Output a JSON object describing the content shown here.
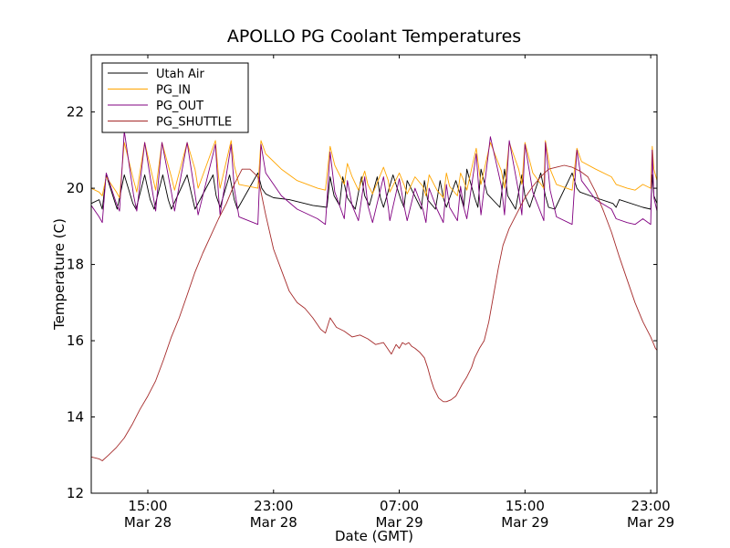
{
  "chart_data": {
    "type": "line",
    "title": "APOLLO PG Coolant Temperatures",
    "xlabel": "Date (GMT)",
    "ylabel": "Temperature (C)",
    "xlim": [
      11.4,
      47.4
    ],
    "ylim": [
      12,
      23.5
    ],
    "grid": false,
    "legend_position": "top-left",
    "x_unit": "hours since Mar 28 00:00 GMT",
    "yticks": [
      12,
      14,
      16,
      18,
      20,
      22
    ],
    "ytick_labels": [
      "12",
      "14",
      "16",
      "18",
      "20",
      "22"
    ],
    "xticks": [
      15,
      23,
      31,
      39,
      47
    ],
    "xtick_labels": [
      [
        "15:00",
        "Mar 28"
      ],
      [
        "23:00",
        "Mar 28"
      ],
      [
        "07:00",
        "Mar 29"
      ],
      [
        "15:00",
        "Mar 29"
      ],
      [
        "23:00",
        "Mar 29"
      ]
    ],
    "series": [
      {
        "name": "Utah Air",
        "color": "#000000",
        "x": [
          11.4,
          11.9,
          12.1,
          12.35,
          12.85,
          13.05,
          13.5,
          14.05,
          14.25,
          14.8,
          15.15,
          15.4,
          15.95,
          16.3,
          16.5,
          17.5,
          17.75,
          18.0,
          19.15,
          19.35,
          19.6,
          20.2,
          20.5,
          20.7,
          22.0,
          22.25,
          22.5,
          23.0,
          24.0,
          25.5,
          26.4,
          26.6,
          26.85,
          27.2,
          27.4,
          27.7,
          28.2,
          28.6,
          28.8,
          29.1,
          29.6,
          29.8,
          30.0,
          30.6,
          31.1,
          31.3,
          31.5,
          32.1,
          32.4,
          32.6,
          32.8,
          33.3,
          33.6,
          33.8,
          34.0,
          34.6,
          34.9,
          35.1,
          35.3,
          35.8,
          36.0,
          36.2,
          36.6,
          37.4,
          37.7,
          37.9,
          38.4,
          38.8,
          39.0,
          39.3,
          40.0,
          40.3,
          40.5,
          40.9,
          42.0,
          42.3,
          42.5,
          43.5,
          44.6,
          44.8,
          45.0,
          46.5,
          47.0,
          47.1,
          47.2,
          47.4
        ],
        "y": [
          19.6,
          19.7,
          19.45,
          20.35,
          19.7,
          19.45,
          20.35,
          19.6,
          19.45,
          20.35,
          19.7,
          19.45,
          20.35,
          19.7,
          19.45,
          20.35,
          19.9,
          19.45,
          20.35,
          19.8,
          19.5,
          20.35,
          19.7,
          19.45,
          20.4,
          20.0,
          19.85,
          19.75,
          19.7,
          19.55,
          19.5,
          20.3,
          19.8,
          19.55,
          20.3,
          19.75,
          19.45,
          20.3,
          19.8,
          19.55,
          20.3,
          19.75,
          19.5,
          20.35,
          19.7,
          19.5,
          20.2,
          19.7,
          19.45,
          20.2,
          19.7,
          19.45,
          20.2,
          19.75,
          19.5,
          20.2,
          19.8,
          19.5,
          20.5,
          19.75,
          19.5,
          20.5,
          19.85,
          19.5,
          20.5,
          19.8,
          19.45,
          20.35,
          19.8,
          19.5,
          20.4,
          19.8,
          19.5,
          19.45,
          20.4,
          20.0,
          19.9,
          19.75,
          19.6,
          19.5,
          19.7,
          19.5,
          19.45,
          20.35,
          19.8,
          19.6
        ]
      },
      {
        "name": "PG_IN",
        "color": "#ffa500",
        "x": [
          11.4,
          11.9,
          12.1,
          12.35,
          13.0,
          13.2,
          13.5,
          14.1,
          14.3,
          14.8,
          15.3,
          15.5,
          15.9,
          16.5,
          16.7,
          17.5,
          18.0,
          18.2,
          19.3,
          19.5,
          19.6,
          20.3,
          20.5,
          20.8,
          22.0,
          22.2,
          22.5,
          23.5,
          24.5,
          25.8,
          26.3,
          26.6,
          26.9,
          27.5,
          27.7,
          28.0,
          28.4,
          28.8,
          29.0,
          29.3,
          30.0,
          30.3,
          30.4,
          31.0,
          31.3,
          31.5,
          32.0,
          32.5,
          32.7,
          32.9,
          33.4,
          33.8,
          34.0,
          34.2,
          34.7,
          34.9,
          35.1,
          35.3,
          35.9,
          36.1,
          36.2,
          36.8,
          37.5,
          37.7,
          38.0,
          38.6,
          38.8,
          39.0,
          39.5,
          40.2,
          40.3,
          40.6,
          41.0,
          42.0,
          42.3,
          42.6,
          43.5,
          44.5,
          44.8,
          45.5,
          46.0,
          46.5,
          47.0,
          47.1,
          47.2,
          47.4
        ],
        "y": [
          20.0,
          19.9,
          19.8,
          20.3,
          19.9,
          19.75,
          21.2,
          20.2,
          19.9,
          21.2,
          20.3,
          19.95,
          21.2,
          20.3,
          19.95,
          21.2,
          20.5,
          20.0,
          21.25,
          20.3,
          20.0,
          21.25,
          20.6,
          20.1,
          20.0,
          21.25,
          20.9,
          20.5,
          20.2,
          20.0,
          19.95,
          21.1,
          20.6,
          20.1,
          20.65,
          20.3,
          19.95,
          20.45,
          20.1,
          19.85,
          20.55,
          20.2,
          19.9,
          20.4,
          20.1,
          19.85,
          20.3,
          20.05,
          19.8,
          20.35,
          19.95,
          19.75,
          20.4,
          20.05,
          19.8,
          20.4,
          20.2,
          19.95,
          21.05,
          20.4,
          20.1,
          21.2,
          20.45,
          20.0,
          21.2,
          20.5,
          20.1,
          21.2,
          20.4,
          20.0,
          21.25,
          20.5,
          20.1,
          19.95,
          21.05,
          20.7,
          20.5,
          20.3,
          20.1,
          20.0,
          19.95,
          20.1,
          20.0,
          21.1,
          20.5,
          20.2
        ]
      },
      {
        "name": "PG_OUT",
        "color": "#800080",
        "x": [
          11.4,
          11.9,
          12.1,
          12.35,
          13.0,
          13.2,
          13.5,
          14.1,
          14.3,
          14.8,
          15.3,
          15.5,
          15.9,
          16.5,
          16.7,
          17.5,
          18.0,
          18.2,
          19.3,
          19.5,
          19.6,
          20.3,
          20.5,
          20.8,
          22.0,
          22.2,
          22.5,
          23.5,
          24.5,
          25.8,
          26.3,
          26.6,
          26.9,
          27.5,
          27.7,
          28.0,
          28.4,
          28.8,
          29.0,
          29.3,
          30.0,
          30.3,
          30.4,
          31.0,
          31.3,
          31.5,
          32.0,
          32.5,
          32.7,
          32.9,
          33.4,
          33.8,
          34.0,
          34.2,
          34.7,
          34.9,
          35.1,
          35.3,
          35.9,
          36.1,
          36.2,
          36.8,
          37.5,
          37.7,
          38.0,
          38.6,
          38.8,
          39.0,
          39.5,
          40.2,
          40.3,
          40.6,
          41.0,
          42.0,
          42.3,
          42.6,
          43.5,
          44.5,
          44.8,
          45.5,
          46.0,
          46.5,
          47.0,
          47.1,
          47.2,
          47.4
        ],
        "y": [
          19.55,
          19.25,
          19.1,
          20.4,
          19.6,
          19.4,
          21.5,
          19.8,
          19.4,
          21.2,
          19.9,
          19.4,
          21.2,
          19.9,
          19.4,
          21.2,
          19.85,
          19.3,
          21.15,
          19.8,
          19.3,
          21.15,
          20.0,
          19.25,
          19.05,
          21.15,
          20.4,
          19.8,
          19.45,
          19.2,
          19.05,
          20.95,
          19.9,
          19.2,
          20.2,
          19.55,
          19.15,
          20.3,
          19.55,
          19.1,
          20.3,
          19.5,
          19.15,
          20.25,
          19.55,
          19.15,
          20.0,
          19.45,
          19.1,
          20.0,
          19.45,
          19.1,
          20.1,
          19.5,
          19.15,
          20.05,
          19.5,
          19.2,
          20.9,
          19.75,
          19.3,
          21.35,
          20.05,
          19.3,
          21.25,
          19.9,
          19.3,
          21.15,
          19.9,
          19.15,
          21.2,
          19.95,
          19.25,
          19.05,
          21.0,
          20.2,
          19.7,
          19.45,
          19.2,
          19.1,
          19.05,
          19.2,
          19.05,
          21.0,
          19.75,
          19.4
        ]
      },
      {
        "name": "PG_SHUTTLE",
        "color": "#a52a2a",
        "x": [
          11.4,
          11.9,
          12.1,
          12.5,
          13.0,
          13.5,
          14.0,
          14.5,
          15.0,
          15.5,
          16.0,
          16.5,
          17.0,
          17.5,
          18.0,
          18.5,
          19.0,
          19.5,
          20.0,
          20.5,
          21.0,
          21.5,
          22.0,
          22.5,
          23.0,
          23.5,
          24.0,
          24.5,
          25.0,
          25.5,
          26.0,
          26.3,
          26.6,
          27.0,
          27.5,
          28.0,
          28.5,
          29.0,
          29.5,
          30.0,
          30.5,
          30.8,
          31.0,
          31.2,
          31.4,
          31.6,
          31.8,
          32.0,
          32.3,
          32.6,
          32.8,
          33.0,
          33.2,
          33.5,
          33.8,
          34.0,
          34.3,
          34.6,
          34.8,
          35.0,
          35.3,
          35.6,
          35.8,
          36.1,
          36.4,
          36.7,
          37.0,
          37.3,
          37.6,
          38.0,
          38.5,
          39.0,
          39.5,
          40.0,
          40.5,
          41.0,
          41.5,
          42.0,
          42.5,
          43.0,
          43.5,
          44.0,
          44.5,
          45.0,
          45.5,
          46.0,
          46.5,
          47.0,
          47.2,
          47.3,
          47.4
        ],
        "y": [
          12.95,
          12.9,
          12.85,
          13.0,
          13.2,
          13.45,
          13.8,
          14.2,
          14.55,
          14.95,
          15.5,
          16.1,
          16.6,
          17.2,
          17.8,
          18.3,
          18.75,
          19.2,
          19.6,
          20.1,
          20.5,
          20.5,
          20.3,
          19.3,
          18.4,
          17.85,
          17.3,
          17.0,
          16.85,
          16.6,
          16.3,
          16.2,
          16.6,
          16.35,
          16.25,
          16.1,
          16.15,
          16.05,
          15.9,
          15.95,
          15.65,
          15.9,
          15.8,
          15.95,
          15.9,
          15.95,
          15.85,
          15.8,
          15.7,
          15.55,
          15.3,
          15.0,
          14.75,
          14.5,
          14.4,
          14.4,
          14.45,
          14.55,
          14.7,
          14.85,
          15.05,
          15.3,
          15.55,
          15.8,
          16.0,
          16.5,
          17.2,
          17.9,
          18.5,
          18.95,
          19.35,
          19.75,
          20.05,
          20.3,
          20.5,
          20.55,
          20.6,
          20.55,
          20.45,
          20.3,
          19.9,
          19.4,
          18.85,
          18.2,
          17.6,
          17.0,
          16.5,
          16.1,
          15.9,
          15.8,
          15.75
        ]
      }
    ]
  }
}
